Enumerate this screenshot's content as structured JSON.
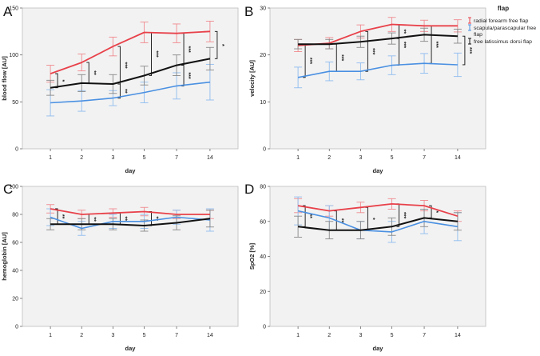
{
  "legend": {
    "title": "flap",
    "items": [
      {
        "label_lines": [
          "radial forearm free flap"
        ],
        "color": "#e8414a"
      },
      {
        "label_lines": [
          "scapula/parascapular free",
          "flap"
        ],
        "color": "#4a90e2"
      },
      {
        "label_lines": [
          "free latissimus dorsi flap"
        ],
        "color": "#111111"
      }
    ]
  },
  "colors": {
    "plot_bg": "#f2f2f2",
    "red": "#e8414a",
    "blue": "#4a90e2",
    "black": "#111111",
    "red_err": "#f08a8f",
    "blue_err": "#8fbcef",
    "black_err": "#888888"
  },
  "chart_data": [
    {
      "type": "line",
      "panel_letter": "A",
      "ylabel": "blood flow [AU]",
      "xlabel": "day",
      "categories": [
        "1",
        "2",
        "3",
        "5",
        "7",
        "14"
      ],
      "ylim": [
        0,
        150
      ],
      "yticks": [
        0,
        50,
        100,
        150
      ],
      "series": [
        {
          "name": "radial forearm free flap",
          "values": [
            80,
            92,
            109,
            124,
            123,
            125
          ],
          "err": [
            9,
            9,
            10,
            11,
            10,
            11
          ]
        },
        {
          "name": "scapula/parascapular free flap",
          "values": [
            49,
            51,
            54,
            60,
            67,
            71
          ],
          "err": [
            14,
            11,
            8,
            11,
            14,
            19
          ]
        },
        {
          "name": "free latissimus dorsi flap",
          "values": [
            65,
            70,
            69,
            78,
            89,
            96
          ],
          "err": [
            8,
            9,
            10,
            10,
            11,
            12
          ]
        }
      ],
      "annotations": [
        {
          "x": "1",
          "from": 80,
          "to": 65,
          "text": "*"
        },
        {
          "x": "2",
          "from": 92,
          "to": 70,
          "text": "**"
        },
        {
          "x": "3",
          "from": 109,
          "to": 69,
          "text": "***"
        },
        {
          "x": "3",
          "from": 69,
          "to": 54,
          "text": "**"
        },
        {
          "x": "5",
          "from": 124,
          "to": 78,
          "text": "***"
        },
        {
          "x": "7",
          "from": 123,
          "to": 89,
          "text": "***"
        },
        {
          "x": "7",
          "from": 89,
          "to": 67,
          "text": "***"
        },
        {
          "x": "14",
          "from": 125,
          "to": 96,
          "text": "*"
        }
      ]
    },
    {
      "type": "line",
      "panel_letter": "B",
      "ylabel": "velocity [AU]",
      "xlabel": "day",
      "categories": [
        "1",
        "2",
        "3",
        "5",
        "7",
        "14"
      ],
      "ylim": [
        0,
        30
      ],
      "yticks": [
        0,
        10,
        20,
        30
      ],
      "series": [
        {
          "name": "radial forearm free flap",
          "values": [
            22.0,
            22.5,
            25.0,
            26.5,
            26.2,
            26.2
          ],
          "err": [
            1.3,
            1.2,
            1.4,
            1.5,
            1.2,
            1.3
          ]
        },
        {
          "name": "scapula/parascapular free flap",
          "values": [
            15.2,
            16.5,
            16.5,
            17.8,
            18.2,
            17.9
          ],
          "err": [
            2.2,
            2.0,
            1.8,
            2.0,
            2.1,
            2.5
          ]
        },
        {
          "name": "free latissimus dorsi flap",
          "values": [
            22.3,
            22.3,
            22.8,
            23.5,
            24.3,
            24.0
          ],
          "err": [
            1.0,
            1.0,
            1.2,
            1.2,
            1.4,
            1.5
          ]
        }
      ],
      "annotations": [
        {
          "x": "1",
          "from": 22.3,
          "to": 15.2,
          "text": "***"
        },
        {
          "x": "2",
          "from": 22.3,
          "to": 16.5,
          "text": "***"
        },
        {
          "x": "3",
          "from": 25.0,
          "to": 16.5,
          "text": "***"
        },
        {
          "x": "5",
          "from": 26.5,
          "to": 17.8,
          "text": "***"
        },
        {
          "x": "5",
          "from": 26.5,
          "to": 23.5,
          "text": "**"
        },
        {
          "x": "7",
          "from": 26.2,
          "to": 18.2,
          "text": "***"
        },
        {
          "x": "14",
          "from": 24.0,
          "to": 17.9,
          "text": "***"
        }
      ]
    },
    {
      "type": "line",
      "panel_letter": "C",
      "ylabel": "hemoglobin [AU]",
      "xlabel": "day",
      "categories": [
        "1",
        "2",
        "3",
        "5",
        "7",
        "14"
      ],
      "ylim": [
        0,
        100
      ],
      "yticks": [
        0,
        20,
        40,
        60,
        80,
        100
      ],
      "series": [
        {
          "name": "radial forearm free flap",
          "values": [
            84,
            80,
            81,
            82,
            80,
            80
          ],
          "err": [
            3,
            3,
            3,
            3,
            3,
            3
          ]
        },
        {
          "name": "scapula/parascapular free flap",
          "values": [
            78,
            70,
            75,
            75,
            78,
            76
          ],
          "err": [
            6,
            5,
            5,
            5,
            5,
            8
          ]
        },
        {
          "name": "free latissimus dorsi flap",
          "values": [
            73,
            73,
            73,
            72,
            74,
            77
          ],
          "err": [
            4,
            4,
            4,
            4,
            5,
            6
          ]
        }
      ],
      "annotations": [
        {
          "x": "1",
          "from": 84,
          "to": 73,
          "text": "**"
        },
        {
          "x": "2",
          "from": 80,
          "to": 73,
          "text": "**"
        },
        {
          "x": "3",
          "from": 81,
          "to": 73,
          "text": "**"
        },
        {
          "x": "5",
          "from": 82,
          "to": 72,
          "text": "**"
        }
      ]
    },
    {
      "type": "line",
      "panel_letter": "D",
      "ylabel": "SpO2 [%]",
      "xlabel": "day",
      "categories": [
        "1",
        "2",
        "3",
        "5",
        "7",
        "14"
      ],
      "ylim": [
        0,
        80
      ],
      "yticks": [
        0,
        20,
        40,
        60,
        80
      ],
      "series": [
        {
          "name": "radial forearm free flap",
          "values": [
            69,
            66,
            68,
            70,
            69,
            63
          ],
          "err": [
            4,
            3,
            3,
            3,
            3,
            3
          ]
        },
        {
          "name": "scapula/parascapular free flap",
          "values": [
            66,
            62,
            55,
            54,
            60,
            57
          ],
          "err": [
            8,
            7,
            5,
            6,
            7,
            8
          ]
        },
        {
          "name": "free latissimus dorsi flap",
          "values": [
            57,
            55,
            55,
            57,
            62,
            60
          ],
          "err": [
            6,
            5,
            5,
            5,
            5,
            5
          ]
        }
      ],
      "annotations": [
        {
          "x": "1",
          "from": 69,
          "to": 57,
          "text": "**"
        },
        {
          "x": "2",
          "from": 66,
          "to": 55,
          "text": "**"
        },
        {
          "x": "3",
          "from": 68,
          "to": 55,
          "text": "*"
        },
        {
          "x": "5",
          "from": 70,
          "to": 57,
          "text": "***"
        },
        {
          "x": "7",
          "from": 69,
          "to": 62,
          "text": "*"
        }
      ]
    }
  ]
}
